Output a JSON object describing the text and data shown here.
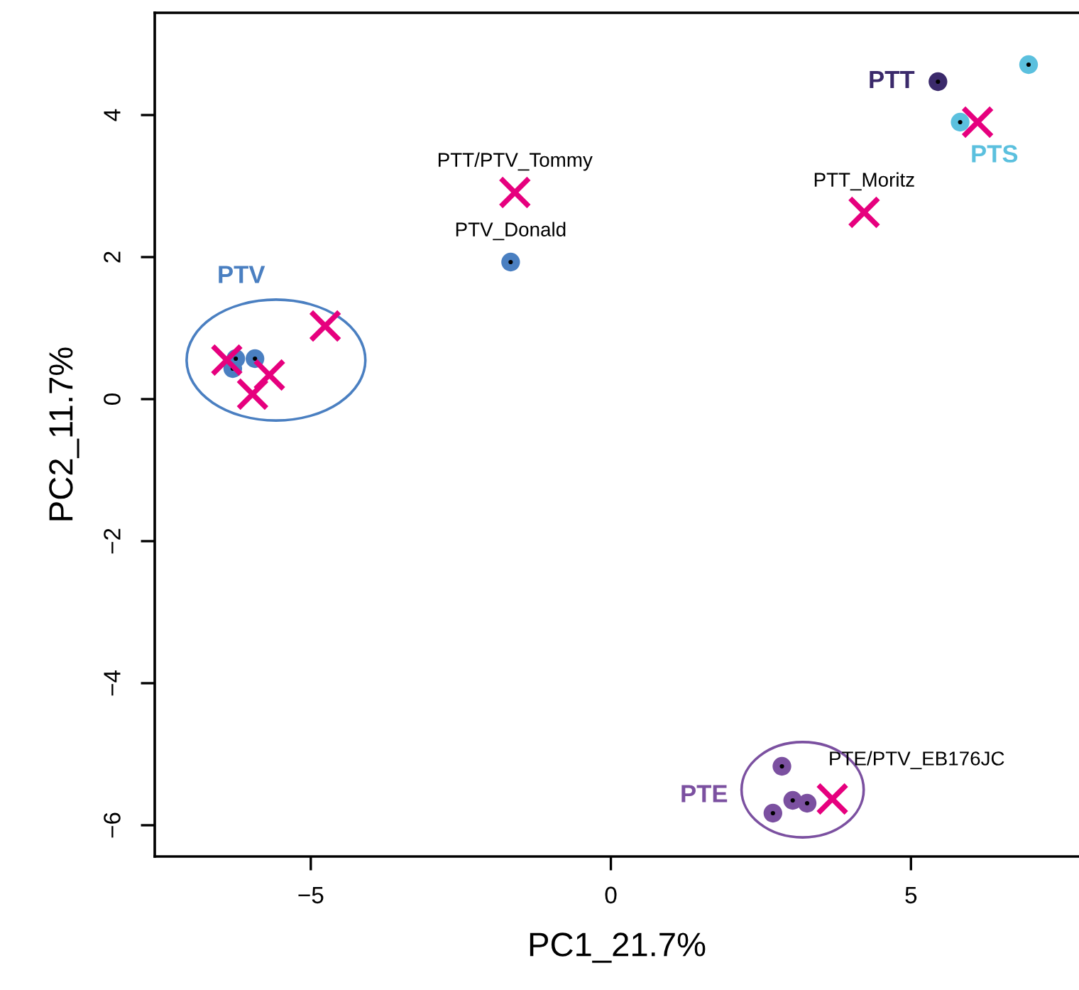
{
  "chart_data": {
    "type": "scatter",
    "xlabel": "PC1_21.7%",
    "ylabel": "PC2_11.7%",
    "xlim": [
      -7.6,
      7.8
    ],
    "ylim": [
      -6.44,
      5.44
    ],
    "xticks": [
      {
        "value": -5,
        "label": "−5"
      },
      0,
      5
    ],
    "yticks": [
      {
        "value": -6,
        "label": "−6"
      },
      {
        "value": -4,
        "label": "−4"
      },
      {
        "value": -2,
        "label": "−2"
      },
      0,
      2,
      4
    ],
    "grid": false,
    "legend": false,
    "marker": "circle",
    "series": [
      {
        "name": "PTV",
        "color": "#4a7fc1",
        "x": [
          -6.25,
          -6.3,
          -5.93
        ],
        "values": [
          0.57,
          0.43,
          0.57
        ]
      },
      {
        "color": "#4a7fc1",
        "x": [
          -1.67
        ],
        "values": [
          1.93
        ],
        "value_labels": [
          "PTV_Donald"
        ]
      },
      {
        "name": "PTT",
        "color": "#3b2a6b",
        "x": [
          5.45
        ],
        "values": [
          4.47
        ]
      },
      {
        "name": "PTS",
        "color": "#5bc0de",
        "x": [
          6.96,
          5.82
        ],
        "values": [
          4.71,
          3.9
        ]
      },
      {
        "name": "PTE",
        "color": "#7b50a0",
        "x": [
          2.85,
          3.03,
          3.27,
          2.7
        ],
        "values": [
          -5.17,
          -5.65,
          -5.69,
          -5.83
        ]
      },
      {
        "color": "#e6007e",
        "marker": "cross",
        "x": [
          -6.4,
          -5.97,
          -5.69,
          -4.76,
          -1.6,
          6.11,
          4.22,
          3.69
        ],
        "values": [
          0.55,
          0.07,
          0.34,
          1.03,
          2.91,
          3.9,
          2.63,
          -5.63
        ],
        "value_labels": [
          null,
          null,
          null,
          null,
          "PTT/PTV_Tommy",
          null,
          "PTT_Moritz",
          "PTE/PTV_EB176JC"
        ]
      }
    ]
  }
}
